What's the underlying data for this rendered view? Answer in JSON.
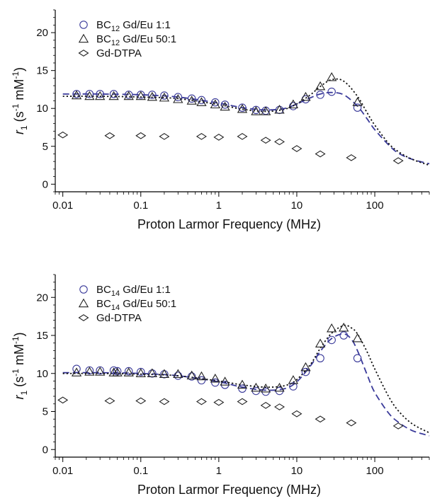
{
  "chart_data": [
    {
      "type": "scatter",
      "xlabel": "Proton Larmor Frequency (MHz)",
      "ylabel": {
        "main": "r",
        "main_sub": "1",
        "units": " (s",
        "s_sup": "-1",
        "mid": " mM",
        "m_sup": "-1",
        "close": ")"
      },
      "x_scale": "log",
      "xlim": [
        0.008,
        500
      ],
      "ylim": [
        -1,
        23
      ],
      "x_ticks": [
        0.01,
        0.1,
        1,
        10,
        100
      ],
      "x_tick_labels": [
        "0.01",
        "0.1",
        "1",
        "10",
        "100"
      ],
      "y_ticks": [
        0,
        5,
        10,
        15,
        20
      ],
      "y_tick_labels": [
        "0",
        "5",
        "10",
        "15",
        "20"
      ],
      "legend_position": "top-left",
      "series": [
        {
          "name": {
            "pre": "BC",
            "sub": "12",
            "post": " Gd/Eu 1:1"
          },
          "marker": "circle",
          "color": "#3a3a9a",
          "x": [
            0.015,
            0.022,
            0.03,
            0.045,
            0.07,
            0.1,
            0.14,
            0.2,
            0.3,
            0.45,
            0.6,
            0.9,
            1.2,
            2,
            3,
            4,
            6,
            9,
            13,
            20,
            28,
            60
          ],
          "y": [
            11.9,
            11.9,
            11.9,
            11.9,
            11.8,
            11.8,
            11.8,
            11.7,
            11.5,
            11.3,
            11.1,
            10.8,
            10.5,
            10.1,
            9.8,
            9.7,
            9.8,
            10.3,
            11.2,
            11.8,
            12.2,
            10.1
          ]
        },
        {
          "name": {
            "pre": "BC",
            "sub": "12",
            "post": " Gd/Eu 50:1"
          },
          "marker": "triangle",
          "color": "#222222",
          "x": [
            0.015,
            0.022,
            0.03,
            0.045,
            0.07,
            0.1,
            0.14,
            0.2,
            0.3,
            0.45,
            0.6,
            0.9,
            1.2,
            2,
            3,
            4,
            6,
            9,
            13,
            20,
            28,
            60
          ],
          "y": [
            11.7,
            11.6,
            11.6,
            11.6,
            11.6,
            11.6,
            11.5,
            11.4,
            11.2,
            11.0,
            10.8,
            10.5,
            10.2,
            9.9,
            9.6,
            9.6,
            9.8,
            10.5,
            11.5,
            12.9,
            14.1,
            10.8
          ]
        },
        {
          "name": {
            "pre": "Gd-DTPA",
            "sub": "",
            "post": ""
          },
          "marker": "diamond",
          "color": "#222222",
          "x": [
            0.01,
            0.04,
            0.1,
            0.2,
            0.6,
            1,
            2,
            4,
            6,
            10,
            20,
            50,
            200
          ],
          "y": [
            6.5,
            6.4,
            6.4,
            6.3,
            6.3,
            6.2,
            6.3,
            5.8,
            5.6,
            4.7,
            4.0,
            3.5,
            3.1
          ]
        }
      ],
      "fit_curves": [
        {
          "style": "dashed",
          "color": "#3a3a9a",
          "x": [
            0.01,
            0.03,
            0.1,
            0.3,
            1,
            2,
            4,
            7,
            10,
            15,
            20,
            28,
            40,
            60,
            80,
            100,
            150,
            200,
            300,
            500
          ],
          "y": [
            11.9,
            11.9,
            11.8,
            11.5,
            10.7,
            10.1,
            9.8,
            10.0,
            10.6,
            11.4,
            11.9,
            12.1,
            11.8,
            10.3,
            8.6,
            7.2,
            5.2,
            4.1,
            3.3,
            2.7
          ]
        },
        {
          "style": "dotted",
          "color": "#111111",
          "x": [
            0.01,
            0.03,
            0.1,
            0.3,
            1,
            2,
            4,
            7,
            10,
            15,
            20,
            28,
            40,
            60,
            80,
            100,
            150,
            200,
            300,
            500
          ],
          "y": [
            11.6,
            11.6,
            11.5,
            11.3,
            10.5,
            9.9,
            9.6,
            9.9,
            10.6,
            11.8,
            12.9,
            13.8,
            13.6,
            11.6,
            9.4,
            7.8,
            5.4,
            4.3,
            3.3,
            2.5
          ]
        }
      ]
    },
    {
      "type": "scatter",
      "xlabel": "Proton Larmor Frequency (MHz)",
      "ylabel": {
        "main": "r",
        "main_sub": "1",
        "units": " (s",
        "s_sup": "-1",
        "mid": " mM",
        "m_sup": "-1",
        "close": ")"
      },
      "x_scale": "log",
      "xlim": [
        0.008,
        500
      ],
      "ylim": [
        -1,
        23
      ],
      "x_ticks": [
        0.01,
        0.1,
        1,
        10,
        100
      ],
      "x_tick_labels": [
        "0.01",
        "0.1",
        "1",
        "10",
        "100"
      ],
      "y_ticks": [
        0,
        5,
        10,
        15,
        20
      ],
      "y_tick_labels": [
        "0",
        "5",
        "10",
        "15",
        "20"
      ],
      "legend_position": "top-left",
      "series": [
        {
          "name": {
            "pre": "BC",
            "sub": "14",
            "post": " Gd/Eu 1:1"
          },
          "marker": "circle",
          "color": "#3a3a9a",
          "x": [
            0.015,
            0.022,
            0.03,
            0.045,
            0.05,
            0.07,
            0.1,
            0.14,
            0.2,
            0.3,
            0.45,
            0.6,
            0.9,
            1.2,
            2,
            3,
            4,
            6,
            9,
            13,
            20,
            28,
            40,
            60
          ],
          "y": [
            10.6,
            10.4,
            10.4,
            10.4,
            10.3,
            10.3,
            10.2,
            10.0,
            9.9,
            9.7,
            9.6,
            9.1,
            8.8,
            8.5,
            8.0,
            7.7,
            7.6,
            7.7,
            8.3,
            10.2,
            12.0,
            14.4,
            15.0,
            12.0
          ]
        },
        {
          "name": {
            "pre": "BC",
            "sub": "14",
            "post": " Gd/Eu 50:1"
          },
          "marker": "triangle",
          "color": "#222222",
          "x": [
            0.015,
            0.022,
            0.03,
            0.045,
            0.05,
            0.07,
            0.1,
            0.14,
            0.2,
            0.3,
            0.45,
            0.6,
            0.9,
            1.2,
            2,
            3,
            4,
            6,
            9,
            13,
            20,
            28,
            40,
            60
          ],
          "y": [
            10.1,
            10.2,
            10.2,
            10.1,
            10.1,
            10.1,
            10.0,
            10.0,
            9.9,
            9.9,
            9.7,
            9.6,
            9.3,
            8.9,
            8.5,
            8.1,
            8.0,
            8.1,
            9.1,
            10.8,
            13.9,
            15.9,
            16.0,
            14.6
          ]
        },
        {
          "name": {
            "pre": "Gd-DTPA",
            "sub": "",
            "post": ""
          },
          "marker": "diamond",
          "color": "#222222",
          "x": [
            0.01,
            0.04,
            0.1,
            0.2,
            0.6,
            1,
            2,
            4,
            6,
            10,
            20,
            50,
            200
          ],
          "y": [
            6.5,
            6.4,
            6.4,
            6.3,
            6.3,
            6.2,
            6.3,
            5.8,
            5.6,
            4.7,
            4.0,
            3.5,
            3.1
          ]
        }
      ],
      "fit_curves": [
        {
          "style": "dashed",
          "color": "#3a3a9a",
          "x": [
            0.01,
            0.03,
            0.1,
            0.3,
            1,
            2,
            4,
            7,
            10,
            15,
            20,
            28,
            40,
            50,
            60,
            80,
            100,
            150,
            200,
            300,
            500
          ],
          "y": [
            10.1,
            10.1,
            10.0,
            9.7,
            8.9,
            8.2,
            7.8,
            8.0,
            8.9,
            11.0,
            12.9,
            14.6,
            15.2,
            14.5,
            13.0,
            9.8,
            7.5,
            4.8,
            3.6,
            2.5,
            1.8
          ]
        },
        {
          "style": "dotted",
          "color": "#111111",
          "x": [
            0.01,
            0.03,
            0.1,
            0.3,
            1,
            2,
            4,
            7,
            10,
            15,
            20,
            28,
            40,
            50,
            60,
            80,
            100,
            150,
            200,
            300,
            500
          ],
          "y": [
            10.0,
            10.0,
            9.9,
            9.7,
            9.0,
            8.5,
            8.2,
            8.4,
            9.2,
            11.2,
            13.3,
            15.3,
            16.3,
            16.0,
            15.2,
            12.8,
            10.6,
            7.0,
            5.1,
            3.4,
            2.2
          ]
        }
      ]
    }
  ]
}
